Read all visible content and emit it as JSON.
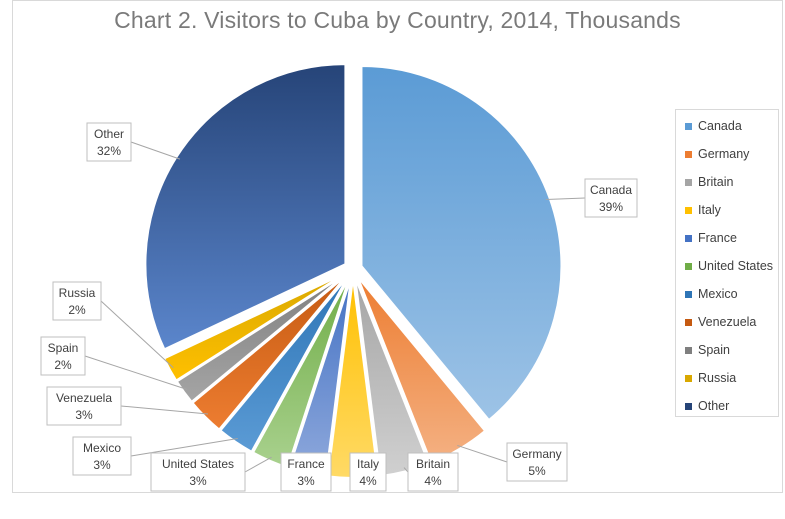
{
  "chart_data": {
    "type": "pie",
    "title": "Chart 2. Visitors to Cuba by Country, 2014, Thousands",
    "legend_position": "right",
    "slices": [
      {
        "name": "Canada",
        "value": 39,
        "label": "39%",
        "color": "#5B9BD5",
        "color_light": "#9DC3E6",
        "exploded": true
      },
      {
        "name": "Germany",
        "value": 5,
        "label": "5%",
        "color": "#ED7D31",
        "color_light": "#F4B183",
        "exploded": true
      },
      {
        "name": "Britain",
        "value": 4,
        "label": "4%",
        "color": "#A5A5A5",
        "color_light": "#D0D0D0",
        "exploded": true
      },
      {
        "name": "Italy",
        "value": 4,
        "label": "4%",
        "color": "#FFC000",
        "color_light": "#FFDA66",
        "exploded": true
      },
      {
        "name": "France",
        "value": 3,
        "label": "3%",
        "color": "#4472C4",
        "color_light": "#8FA9DC",
        "exploded": true
      },
      {
        "name": "United States",
        "value": 3,
        "label": "3%",
        "color": "#70AD47",
        "color_light": "#A9D18E",
        "exploded": true
      },
      {
        "name": "Mexico",
        "value": 3,
        "label": "3%",
        "color": "#2E75B6",
        "color_light": "#5B9BD5",
        "exploded": true
      },
      {
        "name": "Venezuela",
        "value": 3,
        "label": "3%",
        "color": "#C55A11",
        "color_light": "#ED7D31",
        "exploded": true
      },
      {
        "name": "Spain",
        "value": 2,
        "label": "2%",
        "color": "#7F7F7F",
        "color_light": "#A5A5A5",
        "exploded": true
      },
      {
        "name": "Russia",
        "value": 2,
        "label": "2%",
        "color": "#D9A800",
        "color_light": "#FFC000",
        "exploded": true
      },
      {
        "name": "Other",
        "value": 32,
        "label": "32%",
        "color": "#264478",
        "color_light": "#5B86CC",
        "exploded": true
      }
    ]
  }
}
